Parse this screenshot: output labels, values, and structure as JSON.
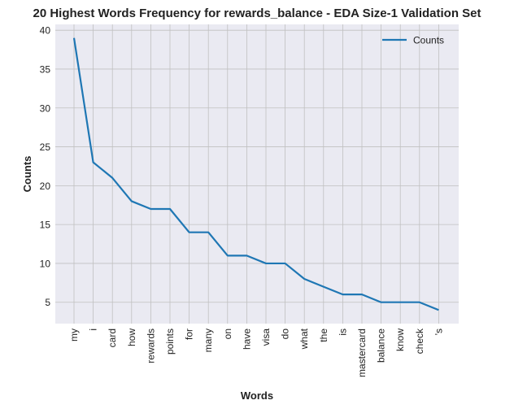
{
  "chart_data": {
    "type": "line",
    "title": "20 Highest Words Frequency for rewards_balance - EDA Size-1 Validation Set",
    "xlabel": "Words",
    "ylabel": "Counts",
    "categories": [
      "my",
      "i",
      "card",
      "how",
      "rewards",
      "points",
      "for",
      "many",
      "on",
      "have",
      "visa",
      "do",
      "what",
      "the",
      "is",
      "mastercard",
      "balance",
      "know",
      "check",
      "'s"
    ],
    "series": [
      {
        "name": "Counts",
        "values": [
          39,
          23,
          21,
          18,
          17,
          17,
          14,
          14,
          11,
          11,
          10,
          10,
          8,
          7,
          6,
          6,
          5,
          5,
          5,
          4
        ]
      }
    ],
    "yticks": [
      5,
      10,
      15,
      20,
      25,
      30,
      35,
      40
    ],
    "ylim": [
      2.25,
      40.75
    ],
    "grid": true,
    "legend_position": "top-right",
    "colors": {
      "line": "#1f77b4",
      "plot_background": "#eaeaf2",
      "grid": "#c0c0c0"
    }
  }
}
